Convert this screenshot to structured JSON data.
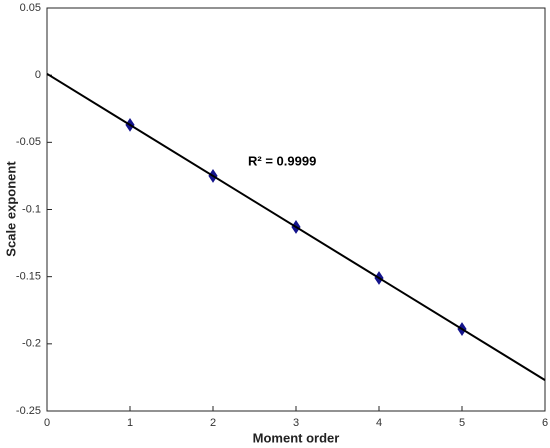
{
  "chart_data": {
    "type": "scatter",
    "xlabel": "Moment order",
    "ylabel": "Scale exponent",
    "annotation": "R² = 0.9999",
    "xlim": [
      0,
      6
    ],
    "xticks": [
      0,
      1,
      2,
      3,
      4,
      5,
      6
    ],
    "ylim": [
      -0.25,
      0.05
    ],
    "yticks": [
      -0.25,
      -0.2,
      -0.15,
      -0.1,
      -0.05,
      0,
      0.05
    ],
    "grid": false,
    "series": [
      {
        "mode": "markers",
        "color": "#14148c",
        "x": [
          1,
          2,
          3,
          4,
          5
        ],
        "values": [
          -0.037,
          -0.075,
          -0.113,
          -0.151,
          -0.189
        ]
      },
      {
        "mode": "line",
        "color": "#000000",
        "x": [
          0,
          6
        ],
        "values": [
          0.001,
          -0.227
        ]
      }
    ]
  }
}
